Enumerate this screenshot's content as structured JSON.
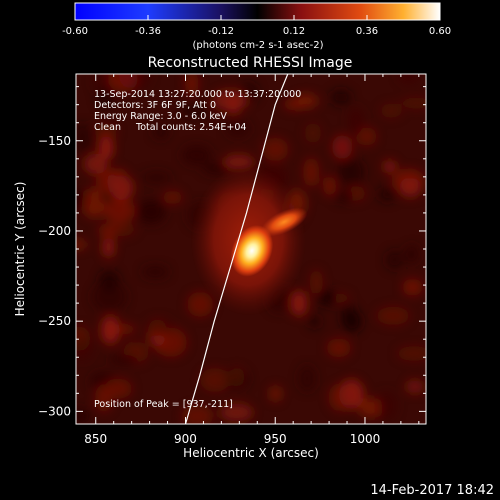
{
  "colorbar": {
    "ticks": [
      "-0.60",
      "-0.36",
      "-0.12",
      "0.12",
      "0.36",
      "0.60"
    ],
    "range": [
      -0.6,
      0.6
    ],
    "units_label": "(photons cm-2 s-1 asec-2)"
  },
  "chart_data": {
    "type": "heatmap",
    "title": "Reconstructed RHESSI Image",
    "xlabel": "Heliocentric X (arcsec)",
    "ylabel": "Heliocentric Y (arcsec)",
    "xlim": [
      839,
      1034
    ],
    "ylim": [
      -307,
      -113
    ],
    "xticks": [
      850,
      900,
      950,
      1000
    ],
    "yticks": [
      -150,
      -200,
      -250,
      -300
    ],
    "annotations": [
      "13-Sep-2014 13:27:20.000 to 13:37:20.000",
      "Detectors: 3F 6F 9F, Att 0",
      "Energy Range: 3.0 - 6.0 keV",
      "Clean     Total counts: 2.54E+04"
    ],
    "peak_label": "Position of Peak = [937,-211]",
    "peak": {
      "x": 937,
      "y": -211,
      "value": 0.6
    },
    "secondary_source": {
      "x": 955,
      "y": -195,
      "value": 0.35
    },
    "limb_curve": {
      "x": [
        900,
        908,
        916,
        925,
        934,
        942,
        950,
        957
      ],
      "y": [
        -307,
        -280,
        -250,
        -220,
        -190,
        -160,
        -130,
        -113
      ]
    },
    "colormap": "red-temperature",
    "grid": false
  },
  "timestamp": "14-Feb-2017 18:42"
}
